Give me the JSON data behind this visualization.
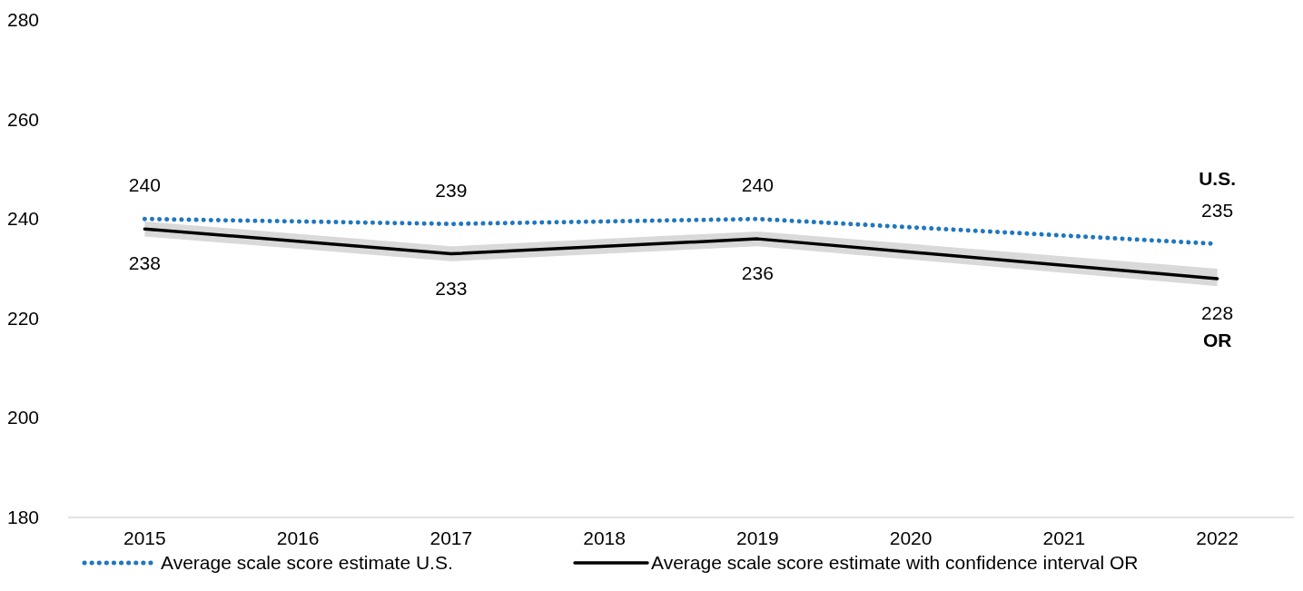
{
  "chart_data": {
    "type": "line",
    "x": [
      2015,
      2017,
      2019,
      2022
    ],
    "xlim": [
      2014.5,
      2022.5
    ],
    "xticks": [
      2015,
      2016,
      2017,
      2018,
      2019,
      2020,
      2021,
      2022
    ],
    "ylim": [
      180,
      280
    ],
    "yticks": [
      180,
      200,
      220,
      240,
      260,
      280
    ],
    "grid": false,
    "legend": "bottom",
    "data_labels": true,
    "series": [
      {
        "name": "Average scale score estimate U.S.",
        "color": "#1f77c0",
        "line_style": "dotted",
        "values": [
          240,
          239,
          240,
          235
        ]
      },
      {
        "name": "Average scale score estimate with confidence interval OR",
        "color": "#000000",
        "line_style": "solid",
        "values": [
          238,
          233,
          236,
          228
        ],
        "lower": [
          236.5,
          231.5,
          234.5,
          226.5
        ],
        "upper": [
          239.5,
          234.5,
          237.5,
          230
        ]
      }
    ],
    "annotations": [
      {
        "text": "U.S.",
        "x": 2022,
        "y": 235
      },
      {
        "text": "OR",
        "x": 2022,
        "y": 228
      }
    ]
  }
}
